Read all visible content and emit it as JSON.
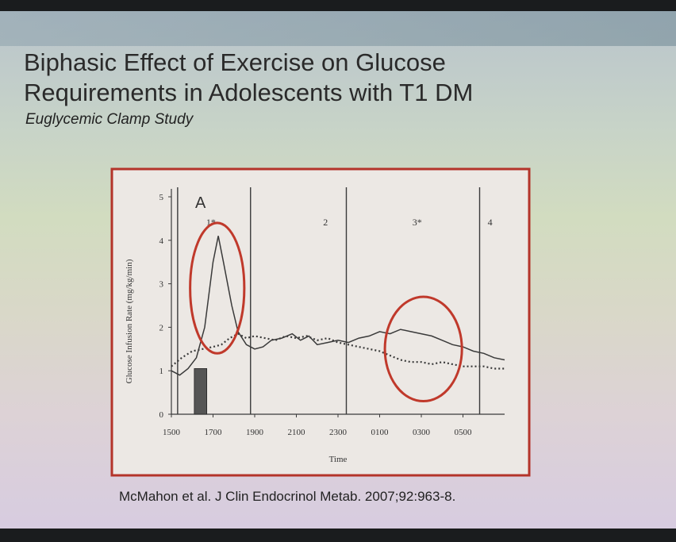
{
  "slide": {
    "title_line1": "Biphasic Effect of Exercise on Glucose",
    "title_line2": "Requirements in Adolescents with T1 DM",
    "subtitle": "Euglycemic Clamp Study",
    "citation": "McMahon et al.  J Clin Endocrinol Metab. 2007;92:963-8."
  },
  "colors": {
    "frame": "#b4342a",
    "highlight": "#c0392b",
    "line": "#3a3a3a",
    "bar": "#555555"
  },
  "chart_data": {
    "type": "line",
    "figure_label": "A",
    "xlabel": "Time",
    "ylabel": "Glucose Infusion Rate (mg/kg/min)",
    "x_ticks": [
      "1500",
      "1700",
      "1900",
      "2100",
      "2300",
      "0100",
      "0300",
      "0500"
    ],
    "y_ticks": [
      "0",
      "1",
      "2",
      "3",
      "4",
      "5"
    ],
    "ylim": [
      0,
      5
    ],
    "xlim_hours": [
      15,
      31
    ],
    "period_labels": [
      {
        "label": "1*",
        "hour": 16.9
      },
      {
        "label": "2",
        "hour": 22.4
      },
      {
        "label": "3*",
        "hour": 26.8
      },
      {
        "label": "4",
        "hour": 30.3
      }
    ],
    "period_dividers_hours": [
      15.3,
      18.8,
      23.4,
      29.8
    ],
    "exercise_bar": {
      "start_hour": 16.1,
      "end_hour": 16.7,
      "value": 1.05
    },
    "series": [
      {
        "style": "solid",
        "points": [
          [
            15.0,
            1.0
          ],
          [
            15.4,
            0.9
          ],
          [
            15.8,
            1.05
          ],
          [
            16.2,
            1.3
          ],
          [
            16.6,
            2.0
          ],
          [
            17.0,
            3.5
          ],
          [
            17.25,
            4.1
          ],
          [
            17.5,
            3.5
          ],
          [
            17.9,
            2.5
          ],
          [
            18.2,
            1.9
          ],
          [
            18.6,
            1.6
          ],
          [
            19.0,
            1.5
          ],
          [
            19.4,
            1.55
          ],
          [
            19.8,
            1.7
          ],
          [
            20.3,
            1.75
          ],
          [
            20.8,
            1.85
          ],
          [
            21.2,
            1.7
          ],
          [
            21.6,
            1.8
          ],
          [
            22.0,
            1.6
          ],
          [
            22.5,
            1.65
          ],
          [
            23.0,
            1.7
          ],
          [
            23.5,
            1.65
          ],
          [
            24.0,
            1.75
          ],
          [
            24.5,
            1.8
          ],
          [
            25.0,
            1.9
          ],
          [
            25.5,
            1.85
          ],
          [
            26.0,
            1.95
          ],
          [
            26.5,
            1.9
          ],
          [
            27.0,
            1.85
          ],
          [
            27.5,
            1.8
          ],
          [
            28.0,
            1.7
          ],
          [
            28.5,
            1.6
          ],
          [
            29.0,
            1.55
          ],
          [
            29.5,
            1.45
          ],
          [
            30.0,
            1.4
          ],
          [
            30.5,
            1.3
          ],
          [
            31.0,
            1.25
          ]
        ]
      },
      {
        "style": "dotted",
        "points": [
          [
            15.0,
            1.1
          ],
          [
            15.5,
            1.3
          ],
          [
            16.0,
            1.45
          ],
          [
            16.5,
            1.5
          ],
          [
            17.0,
            1.55
          ],
          [
            17.4,
            1.6
          ],
          [
            17.8,
            1.75
          ],
          [
            18.2,
            1.85
          ],
          [
            18.6,
            1.75
          ],
          [
            19.0,
            1.8
          ],
          [
            19.5,
            1.75
          ],
          [
            20.0,
            1.7
          ],
          [
            20.5,
            1.8
          ],
          [
            21.0,
            1.75
          ],
          [
            21.5,
            1.8
          ],
          [
            22.0,
            1.7
          ],
          [
            22.5,
            1.75
          ],
          [
            23.0,
            1.65
          ],
          [
            23.5,
            1.6
          ],
          [
            24.0,
            1.55
          ],
          [
            24.5,
            1.5
          ],
          [
            25.0,
            1.45
          ],
          [
            25.5,
            1.35
          ],
          [
            26.0,
            1.25
          ],
          [
            26.5,
            1.2
          ],
          [
            27.0,
            1.2
          ],
          [
            27.5,
            1.15
          ],
          [
            28.0,
            1.2
          ],
          [
            28.5,
            1.15
          ],
          [
            29.0,
            1.1
          ],
          [
            29.5,
            1.1
          ],
          [
            30.0,
            1.1
          ],
          [
            30.5,
            1.05
          ],
          [
            31.0,
            1.05
          ]
        ]
      }
    ],
    "highlights": [
      {
        "cx_hour": 17.2,
        "cy_value": 2.9,
        "rx_hours": 1.3,
        "ry_value": 1.5
      },
      {
        "cx_hour": 27.1,
        "cy_value": 1.5,
        "rx_hours": 1.85,
        "ry_value": 1.2
      }
    ]
  }
}
